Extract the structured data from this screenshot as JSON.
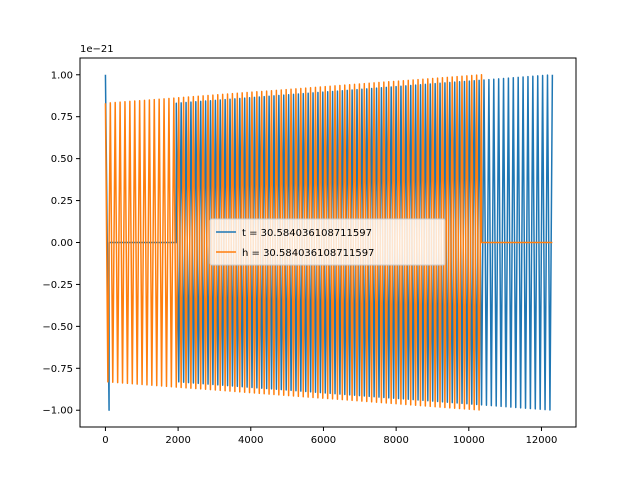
{
  "chart_data": {
    "type": "line",
    "title": "",
    "xlabel": "",
    "ylabel": "",
    "xlim": [
      -700,
      12950
    ],
    "ylim": [
      -1.1,
      1.1
    ],
    "y_offset_label": "1e−21",
    "x_ticks": [
      0,
      2000,
      4000,
      6000,
      8000,
      10000,
      12000
    ],
    "x_tick_labels": [
      "0",
      "2000",
      "4000",
      "6000",
      "8000",
      "10000",
      "12000"
    ],
    "y_ticks": [
      1.0,
      0.75,
      0.5,
      0.25,
      0.0,
      -0.25,
      -0.5,
      -0.75,
      -1.0
    ],
    "y_tick_labels": [
      "1.00",
      "0.75",
      "0.50",
      "0.25",
      "0.00",
      "−0.25",
      "−0.50",
      "−0.75",
      "−1.00"
    ],
    "grid": false,
    "legend_position": "center",
    "series": [
      {
        "name": "t = 30.584036108711597",
        "color": "#1f77b4",
        "x_start": 0,
        "x_end": 12300,
        "segments": [
          {
            "kind": "oscillation",
            "x_start": 0,
            "x_end": 100,
            "amp_start": 1.0,
            "amp_end": 1.0,
            "cycles": 0.5
          },
          {
            "kind": "flat",
            "x_start": 100,
            "x_end": 1950,
            "value": 0.0
          },
          {
            "kind": "oscillation",
            "x_start": 1950,
            "x_end": 12300,
            "amp_start": 0.83,
            "amp_end": 1.0,
            "cycles": 77
          }
        ]
      },
      {
        "name": "h = 30.584036108711597",
        "color": "#ff7f0e",
        "x_start": 0,
        "x_end": 12300,
        "segments": [
          {
            "kind": "oscillation",
            "x_start": 0,
            "x_end": 10350,
            "amp_start": 0.83,
            "amp_end": 1.0,
            "cycles": 77
          },
          {
            "kind": "flat",
            "x_start": 10350,
            "x_end": 12300,
            "value": 0.0
          }
        ]
      }
    ]
  }
}
